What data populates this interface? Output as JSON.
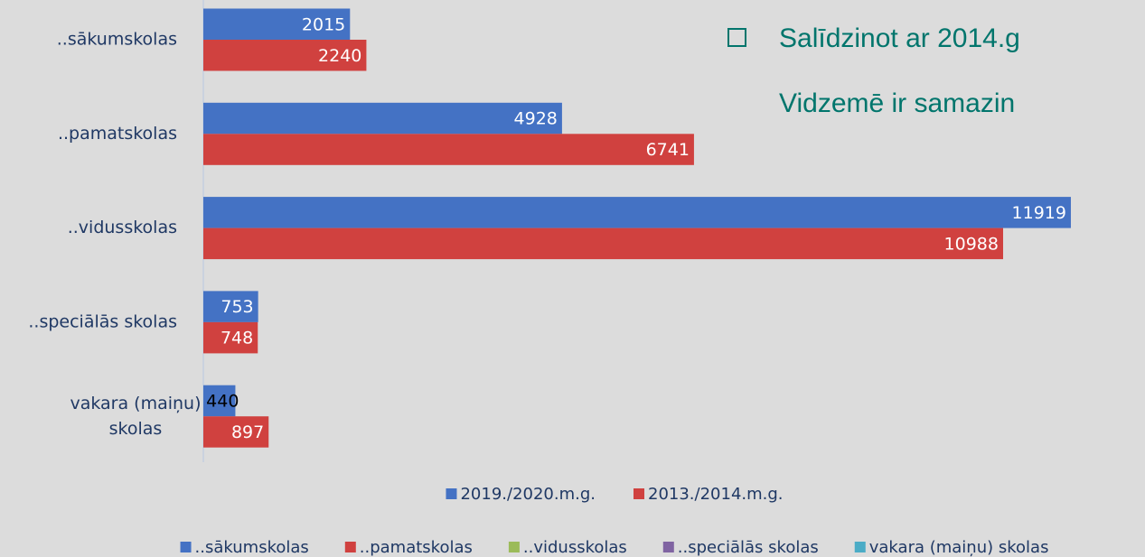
{
  "chart_data": {
    "type": "hbar",
    "categories": [
      "..sākumskolas",
      "..pamatskolas",
      "..vidusskolas",
      "..speciālās skolas",
      "vakara (maiņu) skolas"
    ],
    "series": [
      {
        "name": "2019./2020.m.g.",
        "color": "#4472c4",
        "values": [
          2015,
          4928,
          11919,
          753,
          440
        ]
      },
      {
        "name": "2013./2014.m.g.",
        "color": "#d0413f",
        "values": [
          2240,
          6741,
          10988,
          748,
          897
        ]
      }
    ],
    "xlim": [
      0,
      12000
    ],
    "legend": "bottom",
    "annotations": [
      "Salīdzinot ar 2014.g",
      "Vidzemē ir samazin"
    ],
    "bottom_legend": [
      {
        "name": "..sākumskolas",
        "color": "#4472c4"
      },
      {
        "name": "..pamatskolas",
        "color": "#d0413f"
      },
      {
        "name": "..vidusskolas",
        "color": "#9bbb59"
      },
      {
        "name": "..speciālās skolas",
        "color": "#8064a2"
      },
      {
        "name": "vakara (maiņu) skolas",
        "color": "#4bacc6"
      }
    ]
  }
}
